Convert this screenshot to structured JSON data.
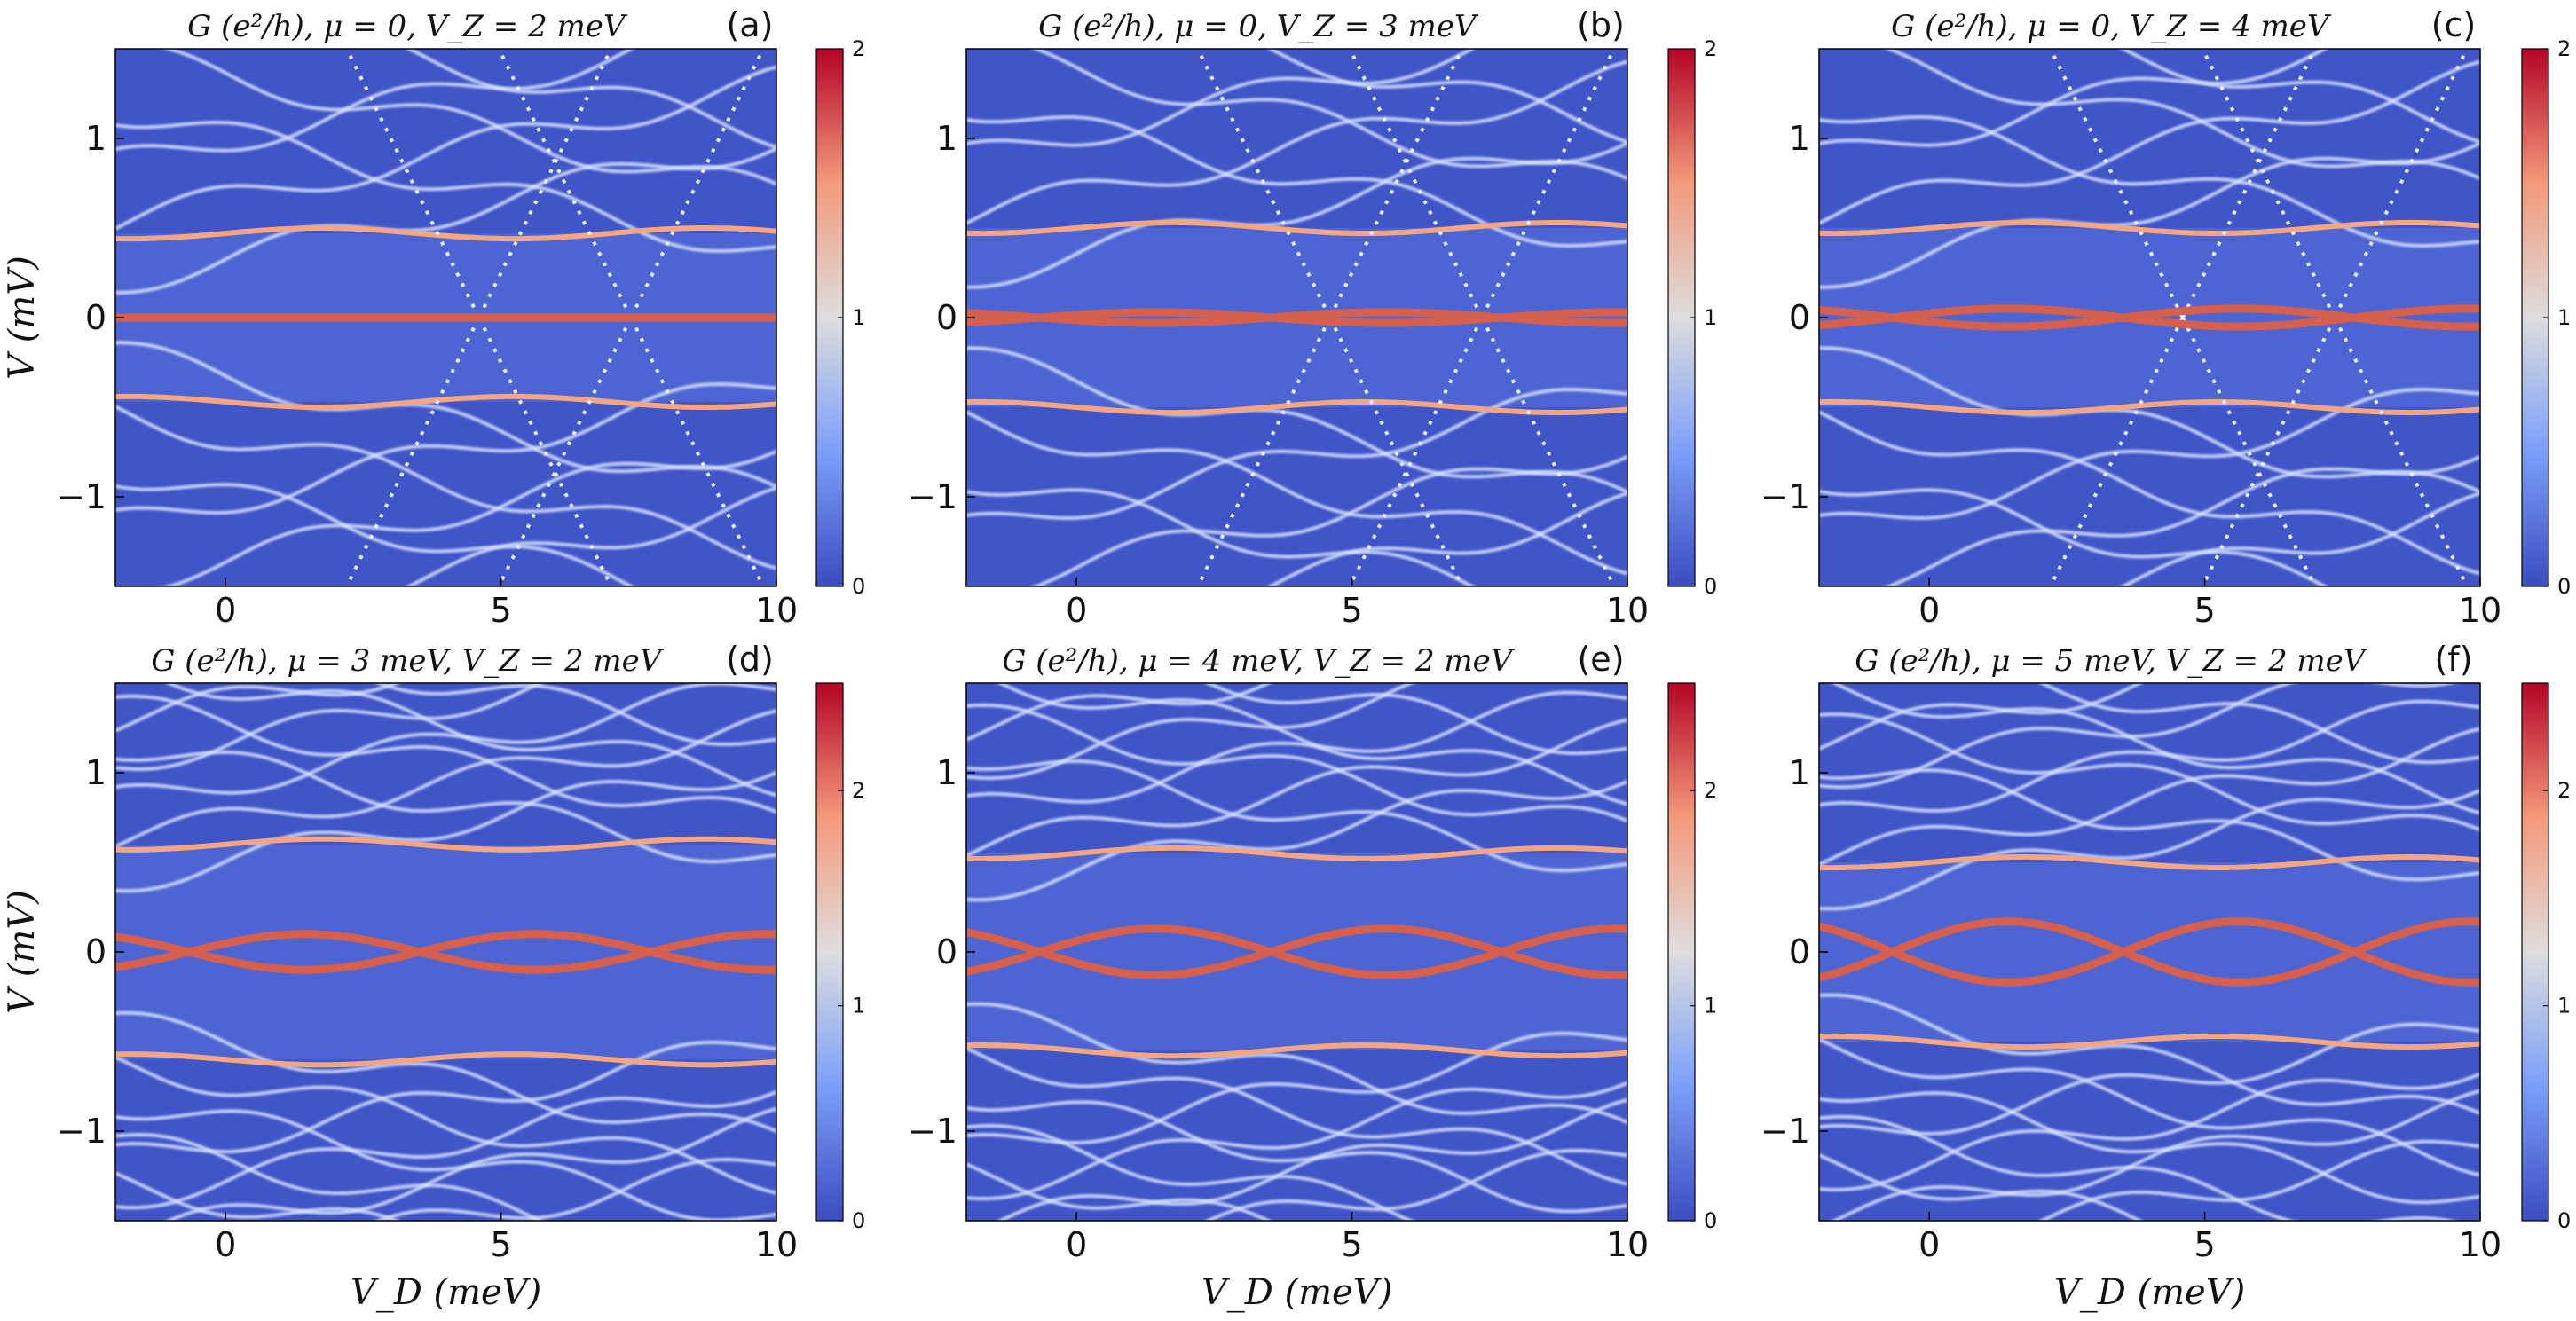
{
  "figure": {
    "ylabel": "V (mV)",
    "xlabel": "V_D (meV)",
    "colormap": {
      "name": "coolwarm",
      "low": "#3b4cc0",
      "mid": "#dddddd",
      "high": "#b40426"
    }
  },
  "chart_data": [
    {
      "type": "heatmap",
      "panel": "(a)",
      "title": "G (e²/h),  μ = 0,  V_Z = 2 meV",
      "xlabel": "",
      "ylabel": "V (mV)",
      "xlim": [
        -2,
        10
      ],
      "ylim": [
        -1.5,
        1.5
      ],
      "xticks": [
        "0",
        "5",
        "10"
      ],
      "yticks": [
        "−1",
        "0",
        "1"
      ],
      "colorbar": {
        "range": [
          0,
          2
        ],
        "ticks": [
          "0",
          "1",
          "2"
        ]
      },
      "features": {
        "zero_bias_peak": true,
        "zero_mode_amplitude": 0.0,
        "gap_edge": 0.47,
        "crossing_lines": true,
        "dense_subbands": false
      },
      "zero_bias_peak_peak_conductance": 2.0
    },
    {
      "type": "heatmap",
      "panel": "(b)",
      "title": "G (e²/h),  μ = 0,  V_Z = 3 meV",
      "xlabel": "",
      "ylabel": "",
      "xlim": [
        -2,
        10
      ],
      "ylim": [
        -1.5,
        1.5
      ],
      "xticks": [
        "0",
        "5",
        "10"
      ],
      "yticks": [
        "−1",
        "0",
        "1"
      ],
      "colorbar": {
        "range": [
          0,
          2
        ],
        "ticks": [
          "0",
          "1",
          "2"
        ]
      },
      "features": {
        "zero_bias_peak": true,
        "zero_mode_amplitude": 0.03,
        "gap_edge": 0.5,
        "crossing_lines": true,
        "dense_subbands": false
      }
    },
    {
      "type": "heatmap",
      "panel": "(c)",
      "title": "G (e²/h),  μ = 0,  V_Z = 4 meV",
      "xlabel": "",
      "ylabel": "",
      "xlim": [
        -2,
        10
      ],
      "ylim": [
        -1.5,
        1.5
      ],
      "xticks": [
        "0",
        "5",
        "10"
      ],
      "yticks": [
        "−1",
        "0",
        "1"
      ],
      "colorbar": {
        "range": [
          0,
          2
        ],
        "ticks": [
          "0",
          "1",
          "2"
        ]
      },
      "features": {
        "zero_bias_peak": true,
        "zero_mode_amplitude": 0.05,
        "gap_edge": 0.5,
        "crossing_lines": true,
        "dense_subbands": false
      }
    },
    {
      "type": "heatmap",
      "panel": "(d)",
      "title": "G (e²/h),  μ = 3 meV,  V_Z = 2 meV",
      "xlabel": "V_D (meV)",
      "ylabel": "V (mV)",
      "xlim": [
        -2,
        10
      ],
      "ylim": [
        -1.5,
        1.5
      ],
      "xticks": [
        "0",
        "5",
        "10"
      ],
      "yticks": [
        "−1",
        "0",
        "1"
      ],
      "colorbar": {
        "range": [
          0,
          2.5
        ],
        "ticks": [
          "0",
          "1",
          "2"
        ]
      },
      "features": {
        "zero_bias_peak": true,
        "zero_mode_amplitude": 0.1,
        "gap_edge": 0.6,
        "crossing_lines": false,
        "dense_subbands": true
      }
    },
    {
      "type": "heatmap",
      "panel": "(e)",
      "title": "G (e²/h),  μ = 4 meV,  V_Z = 2 meV",
      "xlabel": "V_D (meV)",
      "ylabel": "",
      "xlim": [
        -2,
        10
      ],
      "ylim": [
        -1.5,
        1.5
      ],
      "xticks": [
        "0",
        "5",
        "10"
      ],
      "yticks": [
        "−1",
        "0",
        "1"
      ],
      "colorbar": {
        "range": [
          0,
          2.5
        ],
        "ticks": [
          "0",
          "1",
          "2"
        ]
      },
      "features": {
        "zero_bias_peak": true,
        "zero_mode_amplitude": 0.13,
        "gap_edge": 0.55,
        "crossing_lines": false,
        "dense_subbands": true
      }
    },
    {
      "type": "heatmap",
      "panel": "(f)",
      "title": "G (e²/h),  μ = 5 meV,  V_Z = 2 meV",
      "xlabel": "V_D (meV)",
      "ylabel": "",
      "xlim": [
        -2,
        10
      ],
      "ylim": [
        -1.5,
        1.5
      ],
      "xticks": [
        "0",
        "5",
        "10"
      ],
      "yticks": [
        "−1",
        "0",
        "1"
      ],
      "colorbar": {
        "range": [
          0,
          2.5
        ],
        "ticks": [
          "0",
          "1",
          "2"
        ]
      },
      "features": {
        "zero_bias_peak": true,
        "zero_mode_amplitude": 0.17,
        "gap_edge": 0.5,
        "crossing_lines": false,
        "dense_subbands": true
      }
    }
  ]
}
